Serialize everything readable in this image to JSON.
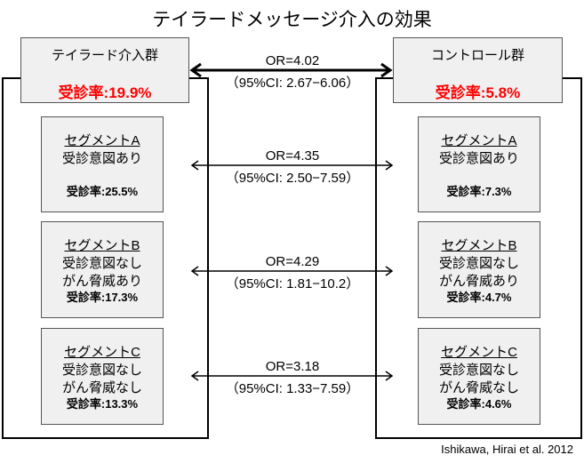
{
  "title": "テイラードメッセージ介入の効果",
  "intervention": {
    "name": "テイラード介入群",
    "rate": "受診率:19.9%",
    "segments": [
      {
        "heading": "セグメントA",
        "lines": [
          "受診意図あり",
          ""
        ],
        "rate": "受診率:25.5%"
      },
      {
        "heading": "セグメントB",
        "lines": [
          "受診意図なし",
          "がん脅威あり"
        ],
        "rate": "受診率:17.3%"
      },
      {
        "heading": "セグメントC",
        "lines": [
          "受診意図なし",
          "がん脅威なし"
        ],
        "rate": "受診率:13.3%"
      }
    ]
  },
  "control": {
    "name": "コントロール群",
    "rate": "受診率:5.8%",
    "segments": [
      {
        "heading": "セグメントA",
        "lines": [
          "受診意図あり",
          ""
        ],
        "rate": "受診率:7.3%"
      },
      {
        "heading": "セグメントB",
        "lines": [
          "受診意図なし",
          "がん脅威あり"
        ],
        "rate": "受診率:4.7%"
      },
      {
        "heading": "セグメントC",
        "lines": [
          "受診意図なし",
          "がん脅威なし"
        ],
        "rate": "受診率:4.6%"
      }
    ]
  },
  "comparisons": [
    {
      "or": "OR=4.02",
      "ci": "（95%CI: 2.67−6.06）"
    },
    {
      "or": "OR=4.35",
      "ci": "（95%CI: 2.50−7.59）"
    },
    {
      "or": "OR=4.29",
      "ci": "（95%CI: 1.81−10.2）"
    },
    {
      "or": "OR=3.18",
      "ci": "（95%CI: 1.33−7.59）"
    }
  ],
  "citation": "Ishikawa, Hirai et al. 2012",
  "colors": {
    "highlight": "#ff0000",
    "box_fill": "#f0f0f0"
  }
}
